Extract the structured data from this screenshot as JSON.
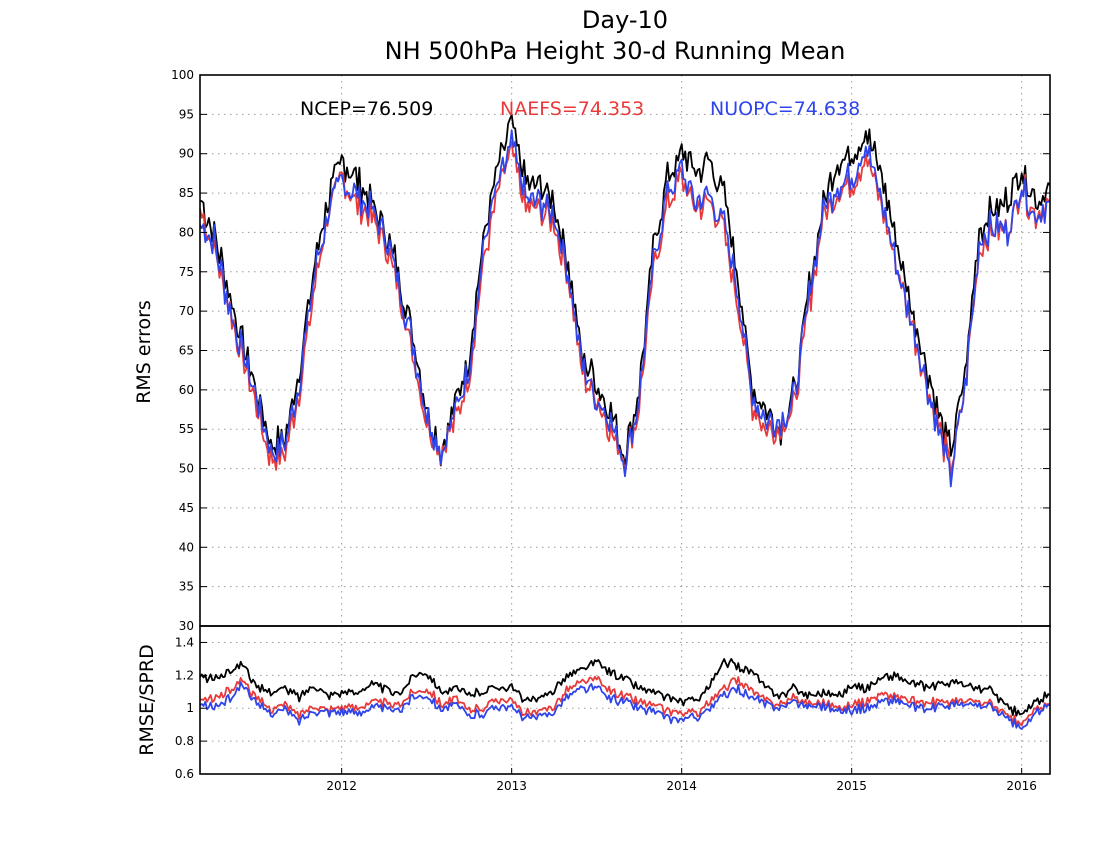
{
  "chart_data": [
    {
      "type": "line",
      "title": "Day-10",
      "subtitle": "NH 500hPa Height 30-d Running Mean",
      "xlabel": "",
      "ylabel": "RMS errors",
      "xlim": [
        "2011-03",
        "2016-03"
      ],
      "ylim": [
        30,
        100
      ],
      "yticks": [
        30,
        35,
        40,
        45,
        50,
        55,
        60,
        65,
        70,
        75,
        80,
        85,
        90,
        95,
        100
      ],
      "xticks": [
        "2012",
        "2013",
        "2014",
        "2015",
        "2016"
      ],
      "grid": true,
      "legend": "top, inline",
      "x": [
        "2011-03",
        "2011-04",
        "2011-05",
        "2011-06",
        "2011-07",
        "2011-08",
        "2011-09",
        "2011-10",
        "2011-11",
        "2011-12",
        "2012-01",
        "2012-02",
        "2012-03",
        "2012-04",
        "2012-05",
        "2012-06",
        "2012-07",
        "2012-08",
        "2012-09",
        "2012-10",
        "2012-11",
        "2012-12",
        "2013-01",
        "2013-02",
        "2013-03",
        "2013-04",
        "2013-05",
        "2013-06",
        "2013-07",
        "2013-08",
        "2013-09",
        "2013-10",
        "2013-11",
        "2013-12",
        "2014-01",
        "2014-02",
        "2014-03",
        "2014-04",
        "2014-05",
        "2014-06",
        "2014-07",
        "2014-08",
        "2014-09",
        "2014-10",
        "2014-11",
        "2014-12",
        "2015-01",
        "2015-02",
        "2015-03",
        "2015-04",
        "2015-05",
        "2015-06",
        "2015-07",
        "2015-08",
        "2015-09",
        "2015-10",
        "2015-11",
        "2015-12",
        "2016-01",
        "2016-02",
        "2016-03"
      ],
      "series": [
        {
          "name": "NCEP=76.509",
          "color": "#000000",
          "values": [
            84,
            80,
            73,
            66,
            60,
            53,
            54,
            62,
            75,
            84,
            89,
            87,
            84,
            81,
            75,
            67,
            58,
            52,
            58,
            64,
            79,
            88,
            94,
            86,
            86,
            84,
            76,
            64,
            61,
            57,
            52,
            60,
            78,
            87,
            90,
            88,
            89,
            85,
            74,
            60,
            57,
            55,
            60,
            73,
            84,
            89,
            90,
            93,
            88,
            80,
            72,
            65,
            58,
            52,
            62,
            80,
            83,
            84,
            88,
            84,
            86
          ]
        },
        {
          "name": "NAEFS=74.353",
          "color": "#e83a3a",
          "values": [
            83,
            78,
            71,
            64,
            58,
            51,
            52,
            60,
            72,
            82,
            87,
            84,
            82,
            79,
            73,
            65,
            56,
            52,
            56,
            62,
            76,
            85,
            90,
            83,
            83,
            81,
            74,
            62,
            59,
            55,
            51,
            58,
            75,
            84,
            87,
            83,
            84,
            80,
            71,
            58,
            55,
            55,
            58,
            71,
            82,
            85,
            86,
            90,
            84,
            77,
            70,
            63,
            56,
            50,
            60,
            78,
            80,
            80,
            86,
            82,
            84
          ]
        },
        {
          "name": "NUOPC=74.638",
          "color": "#2f45ea",
          "values": [
            81,
            79,
            71,
            65,
            59,
            52,
            53,
            61,
            74,
            82,
            87,
            85,
            83,
            80,
            74,
            66,
            57,
            52,
            57,
            63,
            78,
            86,
            91,
            84,
            84,
            82,
            75,
            63,
            59,
            56,
            51,
            59,
            76,
            85,
            88,
            84,
            85,
            81,
            72,
            59,
            56,
            56,
            59,
            72,
            83,
            86,
            87,
            91,
            85,
            77,
            70,
            63,
            56,
            49,
            60,
            79,
            81,
            80,
            86,
            82,
            84
          ]
        }
      ]
    },
    {
      "type": "line",
      "title": "",
      "xlabel": "",
      "ylabel": "RMSE/SPRD",
      "xlim": [
        "2011-03",
        "2016-03"
      ],
      "ylim": [
        0.6,
        1.5
      ],
      "yticks": [
        "0.6",
        "0.8",
        "1",
        "1.2",
        "1.4"
      ],
      "grid": true,
      "x": [
        "2011-03",
        "2011-04",
        "2011-05",
        "2011-06",
        "2011-07",
        "2011-08",
        "2011-09",
        "2011-10",
        "2011-11",
        "2011-12",
        "2012-01",
        "2012-02",
        "2012-03",
        "2012-04",
        "2012-05",
        "2012-06",
        "2012-07",
        "2012-08",
        "2012-09",
        "2012-10",
        "2012-11",
        "2012-12",
        "2013-01",
        "2013-02",
        "2013-03",
        "2013-04",
        "2013-05",
        "2013-06",
        "2013-07",
        "2013-08",
        "2013-09",
        "2013-10",
        "2013-11",
        "2013-12",
        "2014-01",
        "2014-02",
        "2014-03",
        "2014-04",
        "2014-05",
        "2014-06",
        "2014-07",
        "2014-08",
        "2014-09",
        "2014-10",
        "2014-11",
        "2014-12",
        "2015-01",
        "2015-02",
        "2015-03",
        "2015-04",
        "2015-05",
        "2015-06",
        "2015-07",
        "2015-08",
        "2015-09",
        "2015-10",
        "2015-11",
        "2015-12",
        "2016-01",
        "2016-02",
        "2016-03"
      ],
      "series": [
        {
          "name": "NCEP",
          "color": "#000000",
          "values": [
            1.19,
            1.18,
            1.22,
            1.28,
            1.12,
            1.1,
            1.12,
            1.07,
            1.14,
            1.08,
            1.1,
            1.09,
            1.15,
            1.12,
            1.08,
            1.2,
            1.22,
            1.1,
            1.12,
            1.08,
            1.1,
            1.14,
            1.12,
            1.05,
            1.05,
            1.12,
            1.2,
            1.24,
            1.28,
            1.22,
            1.18,
            1.12,
            1.1,
            1.06,
            1.04,
            1.05,
            1.14,
            1.28,
            1.26,
            1.22,
            1.12,
            1.08,
            1.12,
            1.08,
            1.1,
            1.07,
            1.14,
            1.12,
            1.18,
            1.2,
            1.16,
            1.13,
            1.14,
            1.16,
            1.14,
            1.12,
            1.1,
            1.0,
            0.96,
            1.04,
            1.08
          ]
        },
        {
          "name": "NAEFS",
          "color": "#e83a3a",
          "values": [
            1.05,
            1.06,
            1.1,
            1.18,
            1.05,
            1.0,
            1.02,
            0.96,
            1.02,
            0.99,
            1.01,
            1.0,
            1.04,
            1.03,
            1.01,
            1.1,
            1.12,
            1.03,
            1.05,
            0.99,
            1.01,
            1.06,
            1.04,
            0.97,
            0.97,
            1.02,
            1.12,
            1.16,
            1.17,
            1.1,
            1.07,
            1.04,
            1.02,
            0.98,
            0.97,
            0.97,
            1.04,
            1.12,
            1.18,
            1.1,
            1.04,
            1.03,
            1.06,
            1.03,
            1.04,
            1.0,
            1.02,
            1.04,
            1.08,
            1.08,
            1.05,
            1.02,
            1.04,
            1.04,
            1.04,
            1.04,
            1.02,
            0.95,
            0.9,
            1.0,
            1.02
          ]
        },
        {
          "name": "NUOPC",
          "color": "#2f45ea",
          "values": [
            1.02,
            1.01,
            1.05,
            1.15,
            1.02,
            0.97,
            0.99,
            0.92,
            0.99,
            0.98,
            0.98,
            0.97,
            1.0,
            1.0,
            0.98,
            1.07,
            1.08,
            1.0,
            1.02,
            0.95,
            0.97,
            1.02,
            1.0,
            0.94,
            0.94,
            0.99,
            1.08,
            1.12,
            1.12,
            1.06,
            1.04,
            1.0,
            0.98,
            0.94,
            0.93,
            0.94,
            1.0,
            1.08,
            1.12,
            1.06,
            1.02,
            1.01,
            1.04,
            1.01,
            1.02,
            0.98,
            0.99,
            1.0,
            1.04,
            1.05,
            1.02,
            0.99,
            1.01,
            1.02,
            1.02,
            1.02,
            1.0,
            0.93,
            0.87,
            0.97,
            1.02
          ]
        }
      ]
    }
  ]
}
